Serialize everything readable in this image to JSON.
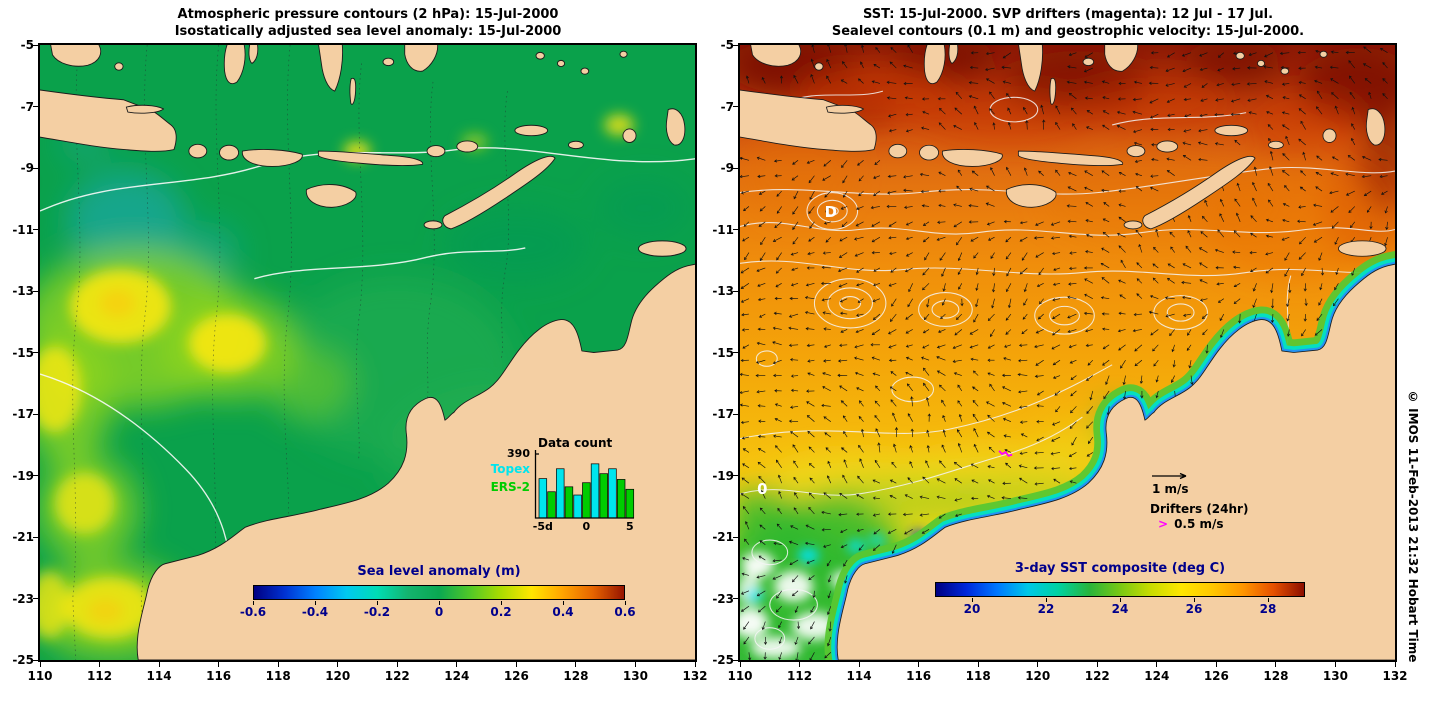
{
  "figure": {
    "credit": "© IMOS 11-Feb-2013 21:32 Hobart Time"
  },
  "axes": {
    "lon_range": [
      110,
      132
    ],
    "lat_range": [
      -5,
      -25
    ],
    "lon_ticks": [
      "110",
      "112",
      "114",
      "116",
      "118",
      "120",
      "122",
      "124",
      "126",
      "128",
      "130",
      "132"
    ],
    "lat_ticks": [
      "-5",
      "-7",
      "-9",
      "-11",
      "-13",
      "-15",
      "-17",
      "-19",
      "-21",
      "-23",
      "-25"
    ]
  },
  "palette": {
    "land": "#f4cfa3",
    "coastline": "#1b1b1b",
    "left_ocean_base": "#0aa14b",
    "contour_white": "#f5f5f5",
    "drifter_magenta": "#ff00ff"
  },
  "left_panel": {
    "title_line1": "Atmospheric pressure contours (2 hPa): 15-Jul-2000",
    "title_line2": "Isostatically adjusted sea level anomaly: 15-Jul-2000",
    "colorbar": {
      "label": "Sea level anomaly (m)",
      "min": -0.6,
      "max": 0.6,
      "tick_labels": [
        "-0.6",
        "-0.4",
        "-0.2",
        "0",
        "0.2",
        "0.4",
        "0.6"
      ],
      "colors": [
        "#000082",
        "#0032d2",
        "#0082ff",
        "#00c8f0",
        "#00dcb4",
        "#14b46e",
        "#0aa852",
        "#50c828",
        "#aadc00",
        "#ffe600",
        "#ffa500",
        "#e66400",
        "#961400"
      ]
    },
    "inset": {
      "title": "Data count",
      "y_max": 390,
      "y_max_label": "390",
      "x_tick_labels": [
        "-5d",
        "0",
        "5"
      ],
      "series_labels": [
        {
          "name": "Topex",
          "color": "#00e5ee"
        },
        {
          "name": "ERS-2",
          "color": "#00cc00"
        }
      ],
      "bars": [
        {
          "s": 0,
          "v": 240
        },
        {
          "s": 1,
          "v": 160
        },
        {
          "s": 0,
          "v": 300
        },
        {
          "s": 1,
          "v": 190
        },
        {
          "s": 0,
          "v": 140
        },
        {
          "s": 1,
          "v": 215
        },
        {
          "s": 0,
          "v": 330
        },
        {
          "s": 1,
          "v": 270
        },
        {
          "s": 0,
          "v": 300
        },
        {
          "s": 1,
          "v": 235
        },
        {
          "s": 1,
          "v": 175
        }
      ]
    }
  },
  "right_panel": {
    "title_line1": "SST: 15-Jul-2000. SVP drifters (magenta): 12 Jul - 17 Jul.",
    "title_line2": "Sealevel contours (0.1 m) and geostrophic velocity: 15-Jul-2000.",
    "colorbar": {
      "label": "3-day SST composite (deg C)",
      "min": 19,
      "max": 29,
      "tick_labels": [
        "20",
        "22",
        "24",
        "26",
        "28"
      ],
      "colors": [
        "#000082",
        "#0028dc",
        "#0078ff",
        "#00c8e6",
        "#00d2a0",
        "#28b43c",
        "#78c814",
        "#c8dc00",
        "#ffe600",
        "#ffc800",
        "#ff9600",
        "#e65000",
        "#8c0f00"
      ]
    },
    "legend": {
      "velocity_scale": "1 m/s",
      "drifters_title": "Drifters (24hr)",
      "drifters_speed": "0.5 m/s",
      "drifter_symbol": ">",
      "drifter_color": "#ff00ff"
    },
    "contour_labels": [
      {
        "text": "D",
        "lon": 113.05,
        "lat": -10.45
      },
      {
        "text": "0",
        "lon": 110.75,
        "lat": -19.45
      }
    ]
  }
}
